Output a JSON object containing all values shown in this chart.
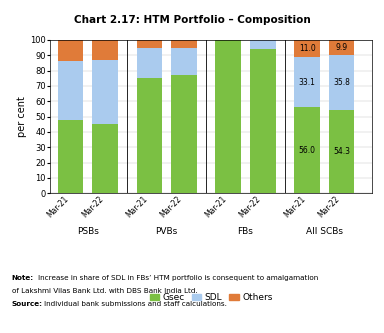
{
  "title": "Chart 2.17: HTM Portfolio – Composition",
  "ylabel": "per cent",
  "groups": [
    "PSBs",
    "PVBs",
    "FBs",
    "All SCBs"
  ],
  "periods": [
    "Mar-21",
    "Mar-22"
  ],
  "gsec": [
    48.0,
    45.0,
    75.0,
    77.0,
    100.0,
    94.0,
    56.0,
    54.3
  ],
  "sdl": [
    38.0,
    42.0,
    20.0,
    18.0,
    0.0,
    6.0,
    33.1,
    35.8
  ],
  "others": [
    14.0,
    13.0,
    5.0,
    5.0,
    0.0,
    0.0,
    11.0,
    9.9
  ],
  "labels_gsec": [
    "",
    "",
    "",
    "",
    "",
    "",
    "56.0",
    "54.3"
  ],
  "labels_sdl": [
    "",
    "",
    "",
    "",
    "",
    "",
    "33.1",
    "35.8"
  ],
  "labels_others": [
    "",
    "",
    "",
    "",
    "",
    "",
    "11.0",
    "9.9"
  ],
  "color_gsec": "#7BC043",
  "color_sdl": "#AACBEE",
  "color_others": "#E07B39",
  "note_bold": "Note:",
  "note_rest": " Increase in share of SDL in FBs’ HTM portfolio is consequent to amalgamation\nof Lakshmi Vilas Bank Ltd. with DBS Bank India Ltd.",
  "source_bold": "Source:",
  "source_rest": " Individual bank submissions and staff calculations.",
  "ylim": [
    0,
    100
  ],
  "yticks": [
    0,
    10,
    20,
    30,
    40,
    50,
    60,
    70,
    80,
    90,
    100
  ],
  "group_starts": [
    0,
    2.3,
    4.6,
    6.9
  ],
  "bar_width": 0.75,
  "bar_gap": 1.0,
  "xlim": [
    -0.6,
    8.8
  ]
}
